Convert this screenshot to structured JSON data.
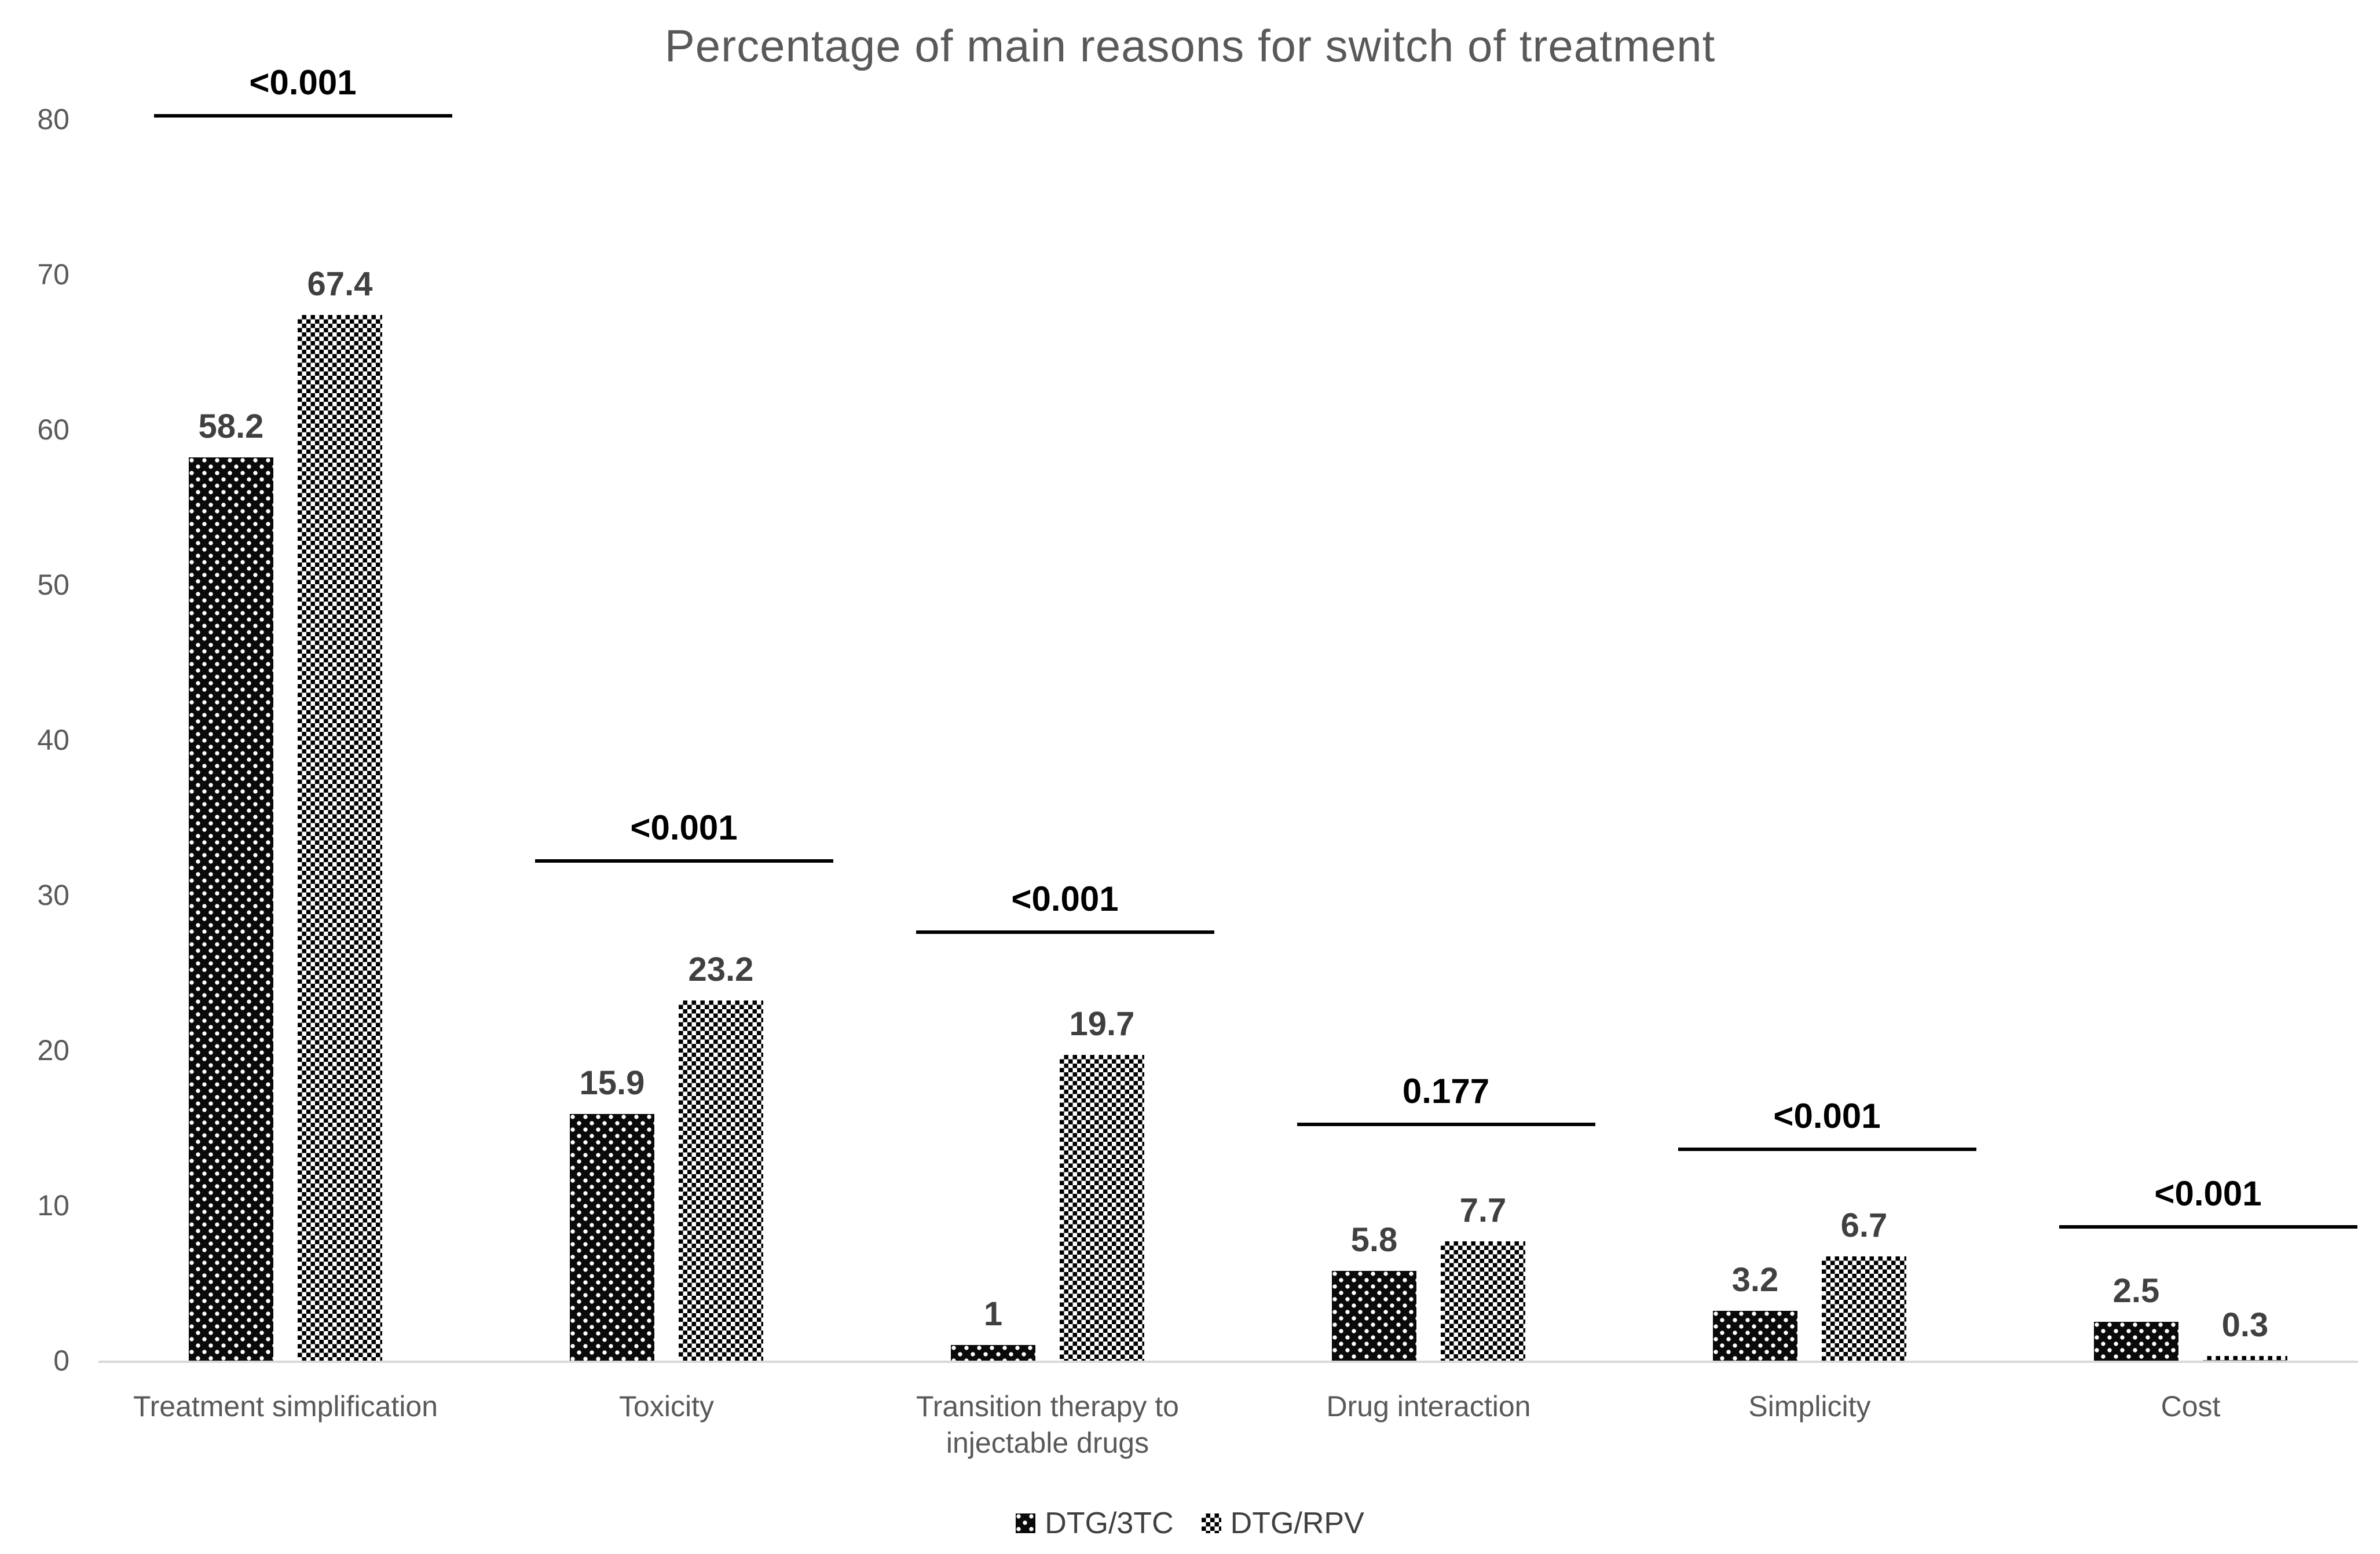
{
  "title": "Percentage of main reasons for switch of treatment",
  "legend": {
    "items": [
      {
        "label": "DTG/3TC",
        "pattern": "dots"
      },
      {
        "label": "DTG/RPV",
        "pattern": "checker"
      }
    ]
  },
  "chart_data": {
    "type": "bar",
    "title": "Percentage of main reasons for switch of treatment",
    "categories": [
      "Treatment simplification",
      "Toxicity",
      "Transition therapy to injectable drugs",
      "Drug interaction",
      "Simplicity",
      "Cost"
    ],
    "series": [
      {
        "name": "DTG/3TC",
        "pattern": "dots",
        "values": [
          58.2,
          15.9,
          1,
          5.8,
          3.2,
          2.5
        ]
      },
      {
        "name": "DTG/RPV",
        "pattern": "checker",
        "values": [
          67.4,
          23.2,
          19.7,
          7.7,
          6.7,
          0.3
        ]
      }
    ],
    "value_labels": [
      [
        "58.2",
        "15.9",
        "1",
        "5.8",
        "3.2",
        "2.5"
      ],
      [
        "67.4",
        "23.2",
        "19.7",
        "7.7",
        "6.7",
        "0.3"
      ]
    ],
    "p_values": [
      "<0.001",
      "<0.001",
      "<0.001",
      "0.177",
      "<0.001",
      "<0.001"
    ],
    "sig_line_heights": [
      80.1,
      32.1,
      27.5,
      15.1,
      13.5,
      8.5
    ],
    "y_ticks": [
      0,
      10,
      20,
      30,
      40,
      50,
      60,
      70,
      80
    ],
    "ylim": [
      0,
      80
    ],
    "xlabel": "",
    "ylabel": "",
    "grid": false,
    "legend_position": "bottom-center",
    "colors": {
      "title_text": "#595959",
      "axis_text": "#595959",
      "category_text": "#595959",
      "value_label_text": "#404040",
      "p_value_text": "#000000",
      "baseline": "#d9d9d9",
      "bar_ink": "#000000",
      "background": "#ffffff"
    }
  }
}
